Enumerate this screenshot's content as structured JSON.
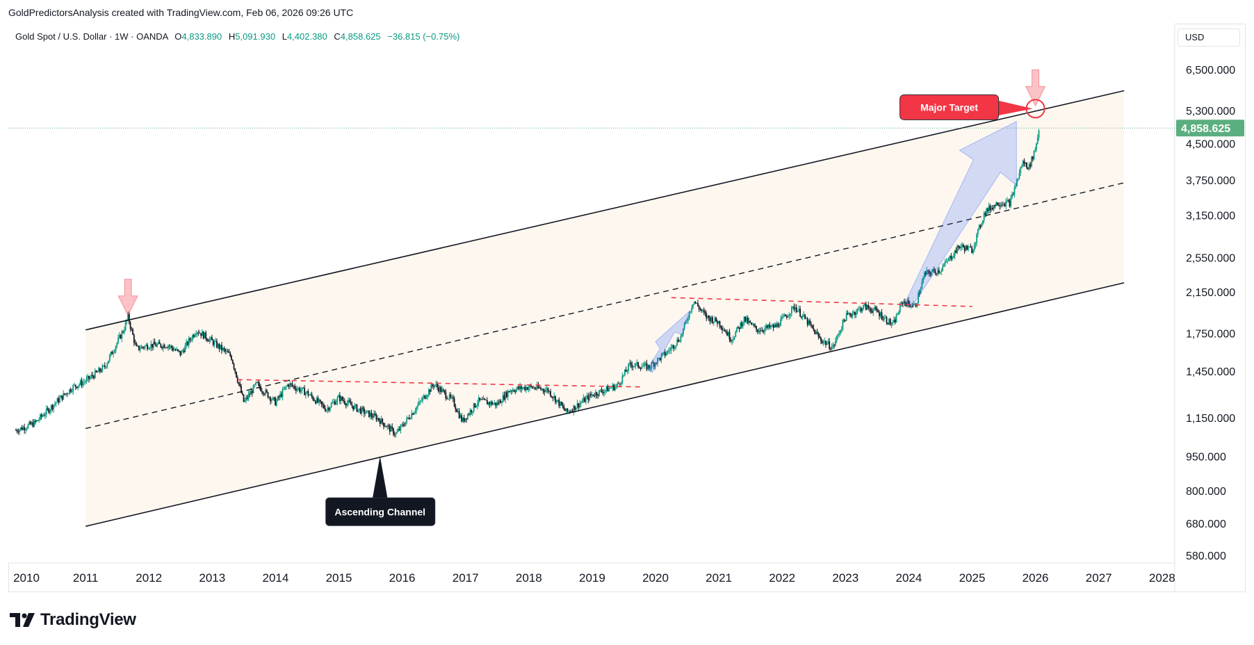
{
  "header": {
    "text": "GoldPredictorsAnalysis created with TradingView.com, Feb 06, 2026 09:26 UTC"
  },
  "legend": {
    "symbol": "Gold Spot / U.S. Dollar · 1W · OANDA",
    "open_label": "O",
    "open": "4,833.890",
    "high_label": "H",
    "high": "5,091.930",
    "low_label": "L",
    "low": "4,402.380",
    "close_label": "C",
    "close": "4,858.625",
    "change": "−36.815 (−0.75%)"
  },
  "currency": "USD",
  "branding": {
    "name": "TradingView"
  },
  "colors": {
    "up": "#089981",
    "down": "#131722",
    "channel_fill": "#fdf7ef",
    "annotation_red": "#f23645",
    "arrow_blue": "#2962ff",
    "price_tag": "#5bae7f"
  },
  "chart_data": {
    "type": "candlestick",
    "symbol": "Gold Spot / U.S. Dollar",
    "interval": "1W",
    "scale": "log",
    "x_ticks": [
      "2010",
      "2011",
      "2012",
      "2013",
      "2014",
      "2015",
      "2016",
      "2017",
      "2018",
      "2019",
      "2020",
      "2021",
      "2022",
      "2023",
      "2024",
      "2025",
      "2026",
      "2027",
      "2028"
    ],
    "y_ticks": [
      "580.000",
      "680.000",
      "800.000",
      "950.000",
      "1,150.000",
      "1,450.000",
      "1,750.000",
      "2,150.000",
      "2,550.000",
      "3,150.000",
      "3,750.000",
      "4,500.000",
      "5,300.000",
      "6,500.000"
    ],
    "y_tick_values": [
      580,
      680,
      800,
      950,
      1150,
      1450,
      1750,
      2150,
      2550,
      3150,
      3750,
      4500,
      5300,
      6500
    ],
    "last_price": {
      "label": "4,858.625",
      "value": 4858.625
    },
    "price_path": [
      [
        2009.9,
        1080
      ],
      [
        2010.2,
        1120
      ],
      [
        2010.5,
        1230
      ],
      [
        2010.8,
        1340
      ],
      [
        2011.0,
        1380
      ],
      [
        2011.3,
        1480
      ],
      [
        2011.6,
        1780
      ],
      [
        2011.67,
        1900
      ],
      [
        2011.8,
        1620
      ],
      [
        2012.0,
        1650
      ],
      [
        2012.3,
        1650
      ],
      [
        2012.5,
        1580
      ],
      [
        2012.75,
        1780
      ],
      [
        2013.0,
        1680
      ],
      [
        2013.3,
        1560
      ],
      [
        2013.5,
        1240
      ],
      [
        2013.7,
        1360
      ],
      [
        2014.0,
        1240
      ],
      [
        2014.2,
        1360
      ],
      [
        2014.5,
        1300
      ],
      [
        2014.8,
        1200
      ],
      [
        2015.0,
        1270
      ],
      [
        2015.3,
        1200
      ],
      [
        2015.6,
        1150
      ],
      [
        2015.9,
        1060
      ],
      [
        2016.1,
        1150
      ],
      [
        2016.5,
        1360
      ],
      [
        2016.8,
        1250
      ],
      [
        2016.95,
        1130
      ],
      [
        2017.2,
        1250
      ],
      [
        2017.5,
        1230
      ],
      [
        2017.7,
        1320
      ],
      [
        2018.0,
        1340
      ],
      [
        2018.3,
        1320
      ],
      [
        2018.6,
        1180
      ],
      [
        2019.0,
        1290
      ],
      [
        2019.4,
        1350
      ],
      [
        2019.6,
        1500
      ],
      [
        2019.9,
        1480
      ],
      [
        2020.2,
        1600
      ],
      [
        2020.4,
        1720
      ],
      [
        2020.6,
        2060
      ],
      [
        2020.8,
        1900
      ],
      [
        2021.0,
        1850
      ],
      [
        2021.2,
        1700
      ],
      [
        2021.4,
        1880
      ],
      [
        2021.6,
        1780
      ],
      [
        2021.9,
        1810
      ],
      [
        2022.2,
        2000
      ],
      [
        2022.4,
        1850
      ],
      [
        2022.6,
        1700
      ],
      [
        2022.8,
        1630
      ],
      [
        2023.0,
        1900
      ],
      [
        2023.3,
        2000
      ],
      [
        2023.5,
        1950
      ],
      [
        2023.75,
        1820
      ],
      [
        2023.9,
        2050
      ],
      [
        2024.1,
        2000
      ],
      [
        2024.25,
        2350
      ],
      [
        2024.5,
        2400
      ],
      [
        2024.8,
        2700
      ],
      [
        2025.0,
        2650
      ],
      [
        2025.2,
        3200
      ],
      [
        2025.4,
        3350
      ],
      [
        2025.6,
        3350
      ],
      [
        2025.8,
        4100
      ],
      [
        2025.9,
        4000
      ],
      [
        2026.0,
        4400
      ],
      [
        2026.06,
        4858
      ]
    ],
    "channel": {
      "upper": [
        [
          2011.0,
          1780
        ],
        [
          2027.4,
          5850
        ]
      ],
      "middle": [
        [
          2011.0,
          1090
        ],
        [
          2027.4,
          3700
        ]
      ],
      "lower": [
        [
          2011.0,
          670
        ],
        [
          2027.4,
          2250
        ]
      ]
    },
    "trendlines": [
      {
        "style": "dashed-red",
        "points": [
          [
            2013.4,
            1390
          ],
          [
            2019.8,
            1340
          ]
        ]
      },
      {
        "style": "dashed-red",
        "points": [
          [
            2020.25,
            2090
          ],
          [
            2025.0,
            2000
          ]
        ]
      }
    ],
    "annotations": [
      {
        "text": "Ascending Channel",
        "anchor": [
          2015.65,
          950
        ]
      },
      {
        "text": "Major Target",
        "anchor": [
          2026.0,
          5350
        ]
      }
    ]
  }
}
